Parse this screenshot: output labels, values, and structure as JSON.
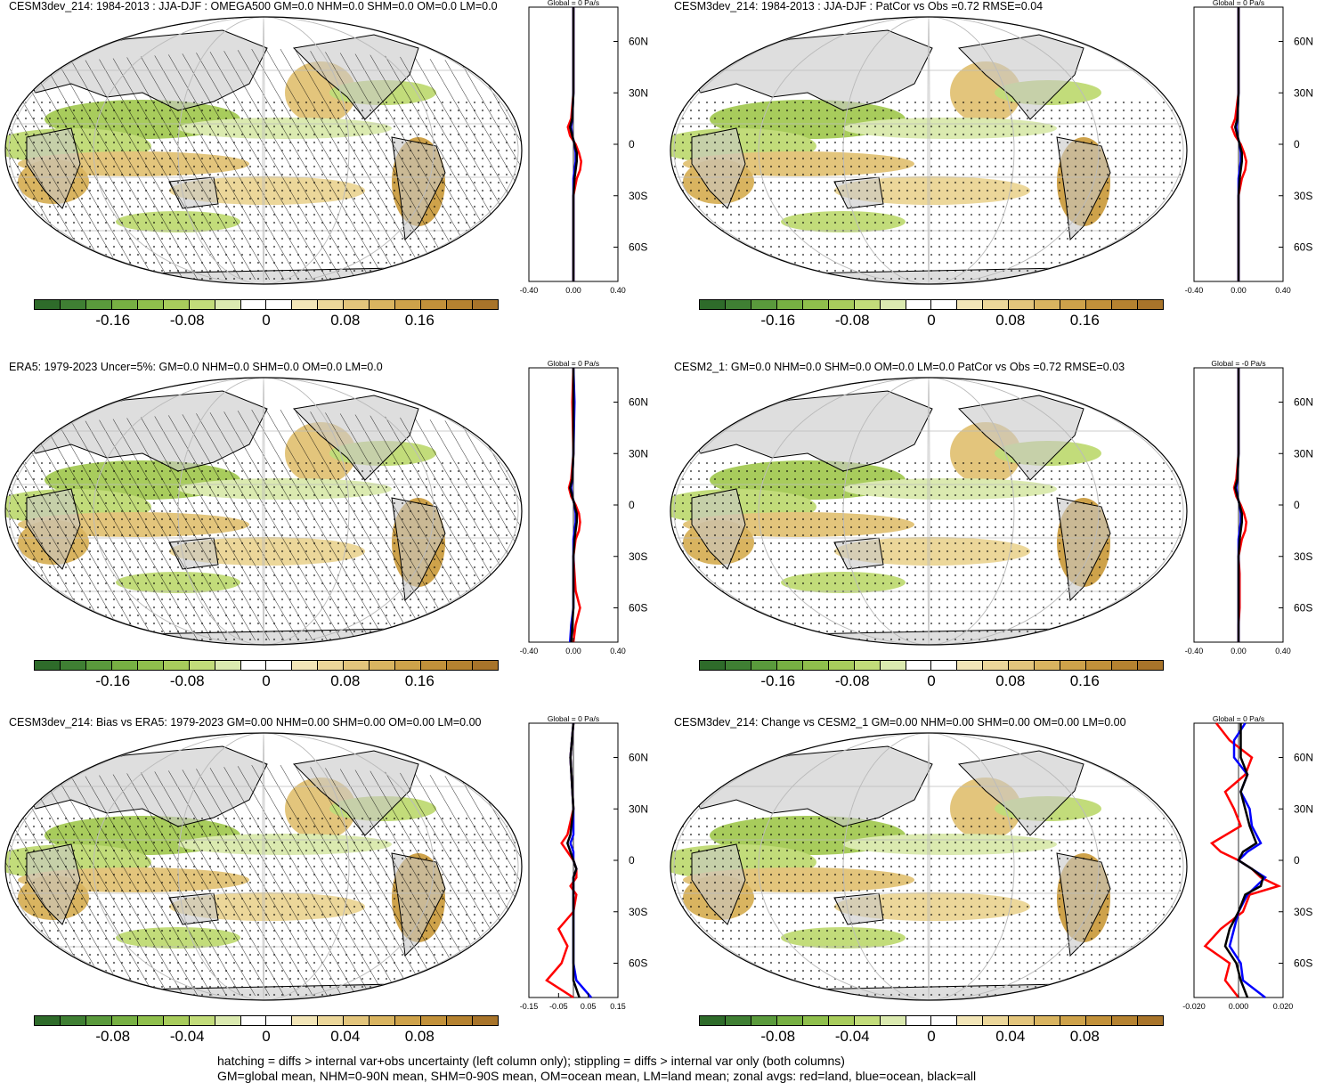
{
  "panels": [
    {
      "id": "p1",
      "title": "CESM3dev_214: 1984-2013 : JJA-DJF : OMEGA500 GM=0.0 NHM=0.0 SHM=0.0 OM=0.0 LM=0.0",
      "global_label": "Global = 0 Pa/s",
      "cb_ticks": [
        "-0.16",
        "-0.08",
        "0",
        "0.08",
        "0.16"
      ],
      "zonal_xticks": [
        "-0.40",
        "0.00",
        "0.40"
      ],
      "hatched": true
    },
    {
      "id": "p2",
      "title": "CESM3dev_214: 1984-2013 : JJA-DJF : PatCor vs Obs =0.72 RMSE=0.04",
      "global_label": "Global = 0 Pa/s",
      "cb_ticks": [
        "-0.16",
        "-0.08",
        "0",
        "0.08",
        "0.16"
      ],
      "zonal_xticks": [
        "-0.40",
        "0.00",
        "0.40"
      ],
      "hatched": false
    },
    {
      "id": "p3",
      "title": "ERA5: 1979-2023 Uncer=5%: GM=0.0 NHM=0.0 SHM=0.0 OM=0.0 LM=0.0",
      "global_label": "Global = 0 Pa/s",
      "cb_ticks": [
        "-0.16",
        "-0.08",
        "0",
        "0.08",
        "0.16"
      ],
      "zonal_xticks": [
        "-0.40",
        "0.00",
        "0.40"
      ],
      "hatched": true
    },
    {
      "id": "p4",
      "title": "CESM2_1: GM=0.0 NHM=0.0 SHM=0.0 OM=0.0 LM=0.0 PatCor vs Obs =0.72 RMSE=0.03",
      "global_label": "Global = -0 Pa/s",
      "cb_ticks": [
        "-0.16",
        "-0.08",
        "0",
        "0.08",
        "0.16"
      ],
      "zonal_xticks": [
        "-0.40",
        "0.00",
        "0.40"
      ],
      "hatched": false
    },
    {
      "id": "p5",
      "title": "CESM3dev_214: Bias vs ERA5: 1979-2023 GM=0.00 NHM=0.00 SHM=0.00 OM=0.00 LM=0.00",
      "global_label": "Global = 0 Pa/s",
      "cb_ticks": [
        "-0.08",
        "-0.04",
        "0",
        "0.04",
        "0.08"
      ],
      "zonal_xticks": [
        "-0.15",
        "-0.05",
        "0.05",
        "0.15"
      ],
      "hatched": true
    },
    {
      "id": "p6",
      "title": "CESM3dev_214: Change vs CESM2_1 GM=0.00 NHM=0.00 SHM=0.00 OM=0.00 LM=0.00",
      "global_label": "Global = 0 Pa/s",
      "cb_ticks": [
        "-0.08",
        "-0.04",
        "0",
        "0.04",
        "0.08"
      ],
      "zonal_xticks": [
        "-0.020",
        "0.000",
        "0.020"
      ],
      "hatched": false
    }
  ],
  "colors": {
    "palette": [
      "#2e6b2a",
      "#3f7f33",
      "#5a9a3c",
      "#77b043",
      "#8fbf4c",
      "#a8cc5c",
      "#c2dc7a",
      "#dbeab0",
      "#ffffff",
      "#ffffff",
      "#f3e6b8",
      "#ecd79a",
      "#e3c57c",
      "#d9b460",
      "#cea24a",
      "#c2913a",
      "#b58230",
      "#a8742a"
    ],
    "land_line": "red",
    "ocean_line": "blue",
    "all_line": "black"
  },
  "zonal_yticks": [
    "60N",
    "30N",
    "0",
    "30S",
    "60S"
  ],
  "footer": {
    "line1": "hatching = diffs > internal var+obs uncertainty (left column only); stippling = diffs > internal var only (both columns)",
    "line2": "GM=global mean, NHM=0-90N mean, SHM=0-90S mean, OM=ocean mean, LM=land mean; zonal avgs: red=land, blue=ocean, black=all"
  },
  "chart_data": [
    {
      "type": "heatmap",
      "title": "CESM3dev_214: 1984-2013 : JJA-DJF : OMEGA500 GM=0.0 NHM=0.0 SHM=0.0 OM=0.0 LM=0.0",
      "colorbar_ticks": [
        -0.16,
        -0.08,
        0,
        0.08,
        0.16
      ],
      "zonal_profile": {
        "title": "Global = 0 Pa/s",
        "xlim": [
          -0.4,
          0.4
        ],
        "ylim": [
          -80,
          80
        ],
        "lat": [
          80,
          60,
          30,
          15,
          10,
          5,
          0,
          -5,
          -10,
          -15,
          -20,
          -30,
          -40,
          -50,
          -60,
          -70,
          -80
        ],
        "series": [
          {
            "name": "red=land",
            "values": [
              0,
              0,
              0,
              -0.02,
              -0.05,
              -0.03,
              0.02,
              0.05,
              0.07,
              0.06,
              0.03,
              0,
              0,
              0,
              0,
              0,
              0
            ]
          },
          {
            "name": "blue=ocean",
            "values": [
              0,
              0,
              0,
              -0.01,
              -0.02,
              -0.01,
              0.01,
              0.02,
              0.02,
              0.01,
              0,
              0,
              0,
              0,
              0,
              0,
              0
            ]
          },
          {
            "name": "black=all",
            "values": [
              0,
              0,
              0,
              -0.01,
              -0.03,
              -0.01,
              0.01,
              0.03,
              0.03,
              0.02,
              0.01,
              0,
              0,
              0,
              0,
              0,
              0
            ]
          }
        ]
      }
    },
    {
      "type": "heatmap",
      "title": "CESM3dev_214: 1984-2013 : JJA-DJF : PatCor vs Obs =0.72 RMSE=0.04",
      "colorbar_ticks": [
        -0.16,
        -0.08,
        0,
        0.08,
        0.16
      ],
      "zonal_profile": {
        "title": "Global = 0 Pa/s",
        "xlim": [
          -0.4,
          0.4
        ],
        "ylim": [
          -80,
          80
        ],
        "lat": [
          80,
          60,
          30,
          15,
          10,
          5,
          0,
          -5,
          -10,
          -15,
          -20,
          -30,
          -40,
          -50,
          -60,
          -70,
          -80
        ],
        "series": [
          {
            "name": "red=land",
            "values": [
              0,
              0,
              0,
              -0.03,
              -0.06,
              -0.03,
              0.02,
              0.05,
              0.07,
              0.06,
              0.03,
              0,
              0,
              0,
              0,
              0,
              0
            ]
          },
          {
            "name": "blue=ocean",
            "values": [
              0,
              0,
              0,
              -0.01,
              -0.02,
              -0.01,
              0.01,
              0.02,
              0.02,
              0.01,
              0,
              0,
              0,
              0,
              0,
              0,
              0
            ]
          },
          {
            "name": "black=all",
            "values": [
              0,
              0,
              0,
              -0.01,
              -0.03,
              -0.01,
              0.01,
              0.03,
              0.03,
              0.02,
              0.01,
              0,
              0,
              0,
              0,
              0,
              0
            ]
          }
        ]
      }
    },
    {
      "type": "heatmap",
      "title": "ERA5: 1979-2023 Uncer=5%: GM=0.0 NHM=0.0 SHM=0.0 OM=0.0 LM=0.0",
      "colorbar_ticks": [
        -0.16,
        -0.08,
        0,
        0.08,
        0.16
      ],
      "zonal_profile": {
        "title": "Global = 0 Pa/s",
        "xlim": [
          -0.4,
          0.4
        ],
        "ylim": [
          -80,
          80
        ],
        "lat": [
          80,
          60,
          30,
          15,
          10,
          5,
          0,
          -5,
          -10,
          -15,
          -20,
          -30,
          -40,
          -50,
          -60,
          -70,
          -80
        ],
        "series": [
          {
            "name": "red=land",
            "values": [
              0,
              -0.01,
              0,
              -0.02,
              -0.04,
              -0.02,
              0.02,
              0.05,
              0.06,
              0.05,
              0.02,
              0,
              0.01,
              0.02,
              0.06,
              0.02,
              0
            ]
          },
          {
            "name": "blue=ocean",
            "values": [
              0,
              0.01,
              0,
              -0.01,
              -0.02,
              -0.01,
              0.01,
              0.02,
              0.02,
              0.01,
              0,
              0,
              0,
              0,
              0,
              -0.02,
              -0.03
            ]
          },
          {
            "name": "black=all",
            "values": [
              0,
              0,
              0,
              -0.01,
              -0.03,
              -0.01,
              0.01,
              0.03,
              0.03,
              0.02,
              0.01,
              0,
              0,
              0,
              0,
              -0.01,
              -0.02
            ]
          }
        ]
      }
    },
    {
      "type": "heatmap",
      "title": "CESM2_1: GM=0.0 NHM=0.0 SHM=0.0 OM=0.0 LM=0.0 PatCor vs Obs =0.72 RMSE=0.03",
      "colorbar_ticks": [
        -0.16,
        -0.08,
        0,
        0.08,
        0.16
      ],
      "zonal_profile": {
        "title": "Global = -0 Pa/s",
        "xlim": [
          -0.4,
          0.4
        ],
        "ylim": [
          -80,
          80
        ],
        "lat": [
          80,
          60,
          30,
          15,
          10,
          5,
          0,
          -5,
          -10,
          -15,
          -20,
          -30,
          -40,
          -50,
          -60,
          -70,
          -80
        ],
        "series": [
          {
            "name": "red=land",
            "values": [
              0,
              0,
              0,
              -0.02,
              -0.04,
              -0.02,
              0.02,
              0.05,
              0.07,
              0.06,
              0.03,
              0,
              0.01,
              0.01,
              0.01,
              0,
              0
            ]
          },
          {
            "name": "blue=ocean",
            "values": [
              0,
              0,
              0,
              -0.01,
              -0.02,
              -0.01,
              0.01,
              0.02,
              0.02,
              0.01,
              0,
              0,
              0,
              0,
              0,
              0,
              0
            ]
          },
          {
            "name": "black=all",
            "values": [
              0,
              0,
              0,
              -0.01,
              -0.03,
              -0.01,
              0.01,
              0.03,
              0.03,
              0.02,
              0.01,
              0,
              0,
              0,
              0,
              0,
              0
            ]
          }
        ]
      }
    },
    {
      "type": "heatmap",
      "title": "CESM3dev_214: Bias vs ERA5: 1979-2023 GM=0.00 NHM=0.00 SHM=0.00 OM=0.00 LM=0.00",
      "colorbar_ticks": [
        -0.08,
        -0.04,
        0,
        0.04,
        0.08
      ],
      "zonal_profile": {
        "title": "Global = 0 Pa/s",
        "xlim": [
          -0.15,
          0.15
        ],
        "ylim": [
          -80,
          80
        ],
        "lat": [
          80,
          60,
          30,
          15,
          10,
          5,
          0,
          -5,
          -10,
          -15,
          -20,
          -30,
          -40,
          -50,
          -60,
          -70,
          -80
        ],
        "series": [
          {
            "name": "red=land",
            "values": [
              0,
              -0.01,
              0,
              -0.02,
              -0.04,
              -0.02,
              0,
              0.01,
              0.01,
              -0.01,
              0.01,
              0,
              -0.05,
              -0.02,
              -0.04,
              -0.09,
              0
            ]
          },
          {
            "name": "blue=ocean",
            "values": [
              0,
              -0.01,
              0,
              0,
              -0.01,
              0,
              0,
              0.01,
              0,
              0,
              0,
              0,
              0,
              0,
              0,
              0.01,
              0.06
            ]
          },
          {
            "name": "black=all",
            "values": [
              0,
              -0.01,
              0,
              -0.01,
              -0.02,
              -0.01,
              0,
              0.01,
              0,
              0,
              0,
              0,
              0,
              0,
              0,
              0,
              0.02
            ]
          }
        ]
      }
    },
    {
      "type": "heatmap",
      "title": "CESM3dev_214: Change vs CESM2_1 GM=0.00 NHM=0.00 SHM=0.00 OM=0.00 LM=0.00",
      "colorbar_ticks": [
        -0.08,
        -0.04,
        0,
        0.04,
        0.08
      ],
      "zonal_profile": {
        "title": "Global = 0 Pa/s",
        "xlim": [
          -0.02,
          0.02
        ],
        "ylim": [
          -80,
          80
        ],
        "lat": [
          80,
          70,
          60,
          50,
          40,
          30,
          20,
          10,
          5,
          0,
          -5,
          -10,
          -15,
          -20,
          -30,
          -40,
          -50,
          -60,
          -70,
          -80
        ],
        "series": [
          {
            "name": "red=land",
            "values": [
              -0.01,
              -0.004,
              0.006,
              0.003,
              -0.006,
              -0.002,
              0.001,
              -0.012,
              -0.008,
              0,
              0.006,
              0.01,
              0.018,
              0.005,
              0.002,
              -0.008,
              -0.015,
              -0.004,
              -0.006,
              0
            ]
          },
          {
            "name": "blue=ocean",
            "values": [
              0.003,
              -0.002,
              -0.002,
              0.004,
              0.001,
              0.005,
              0.006,
              0.01,
              0.004,
              0,
              0.006,
              0.012,
              0.008,
              0.004,
              0,
              -0.002,
              -0.004,
              0.001,
              0.002,
              0.012
            ]
          },
          {
            "name": "black=all",
            "values": [
              0.001,
              0.001,
              0.001,
              0.004,
              0.001,
              0.003,
              0.005,
              0.008,
              0.002,
              0,
              0.006,
              0.011,
              0.01,
              0.003,
              0,
              -0.004,
              -0.006,
              -0.001,
              0.001,
              0.004
            ]
          }
        ]
      }
    }
  ]
}
